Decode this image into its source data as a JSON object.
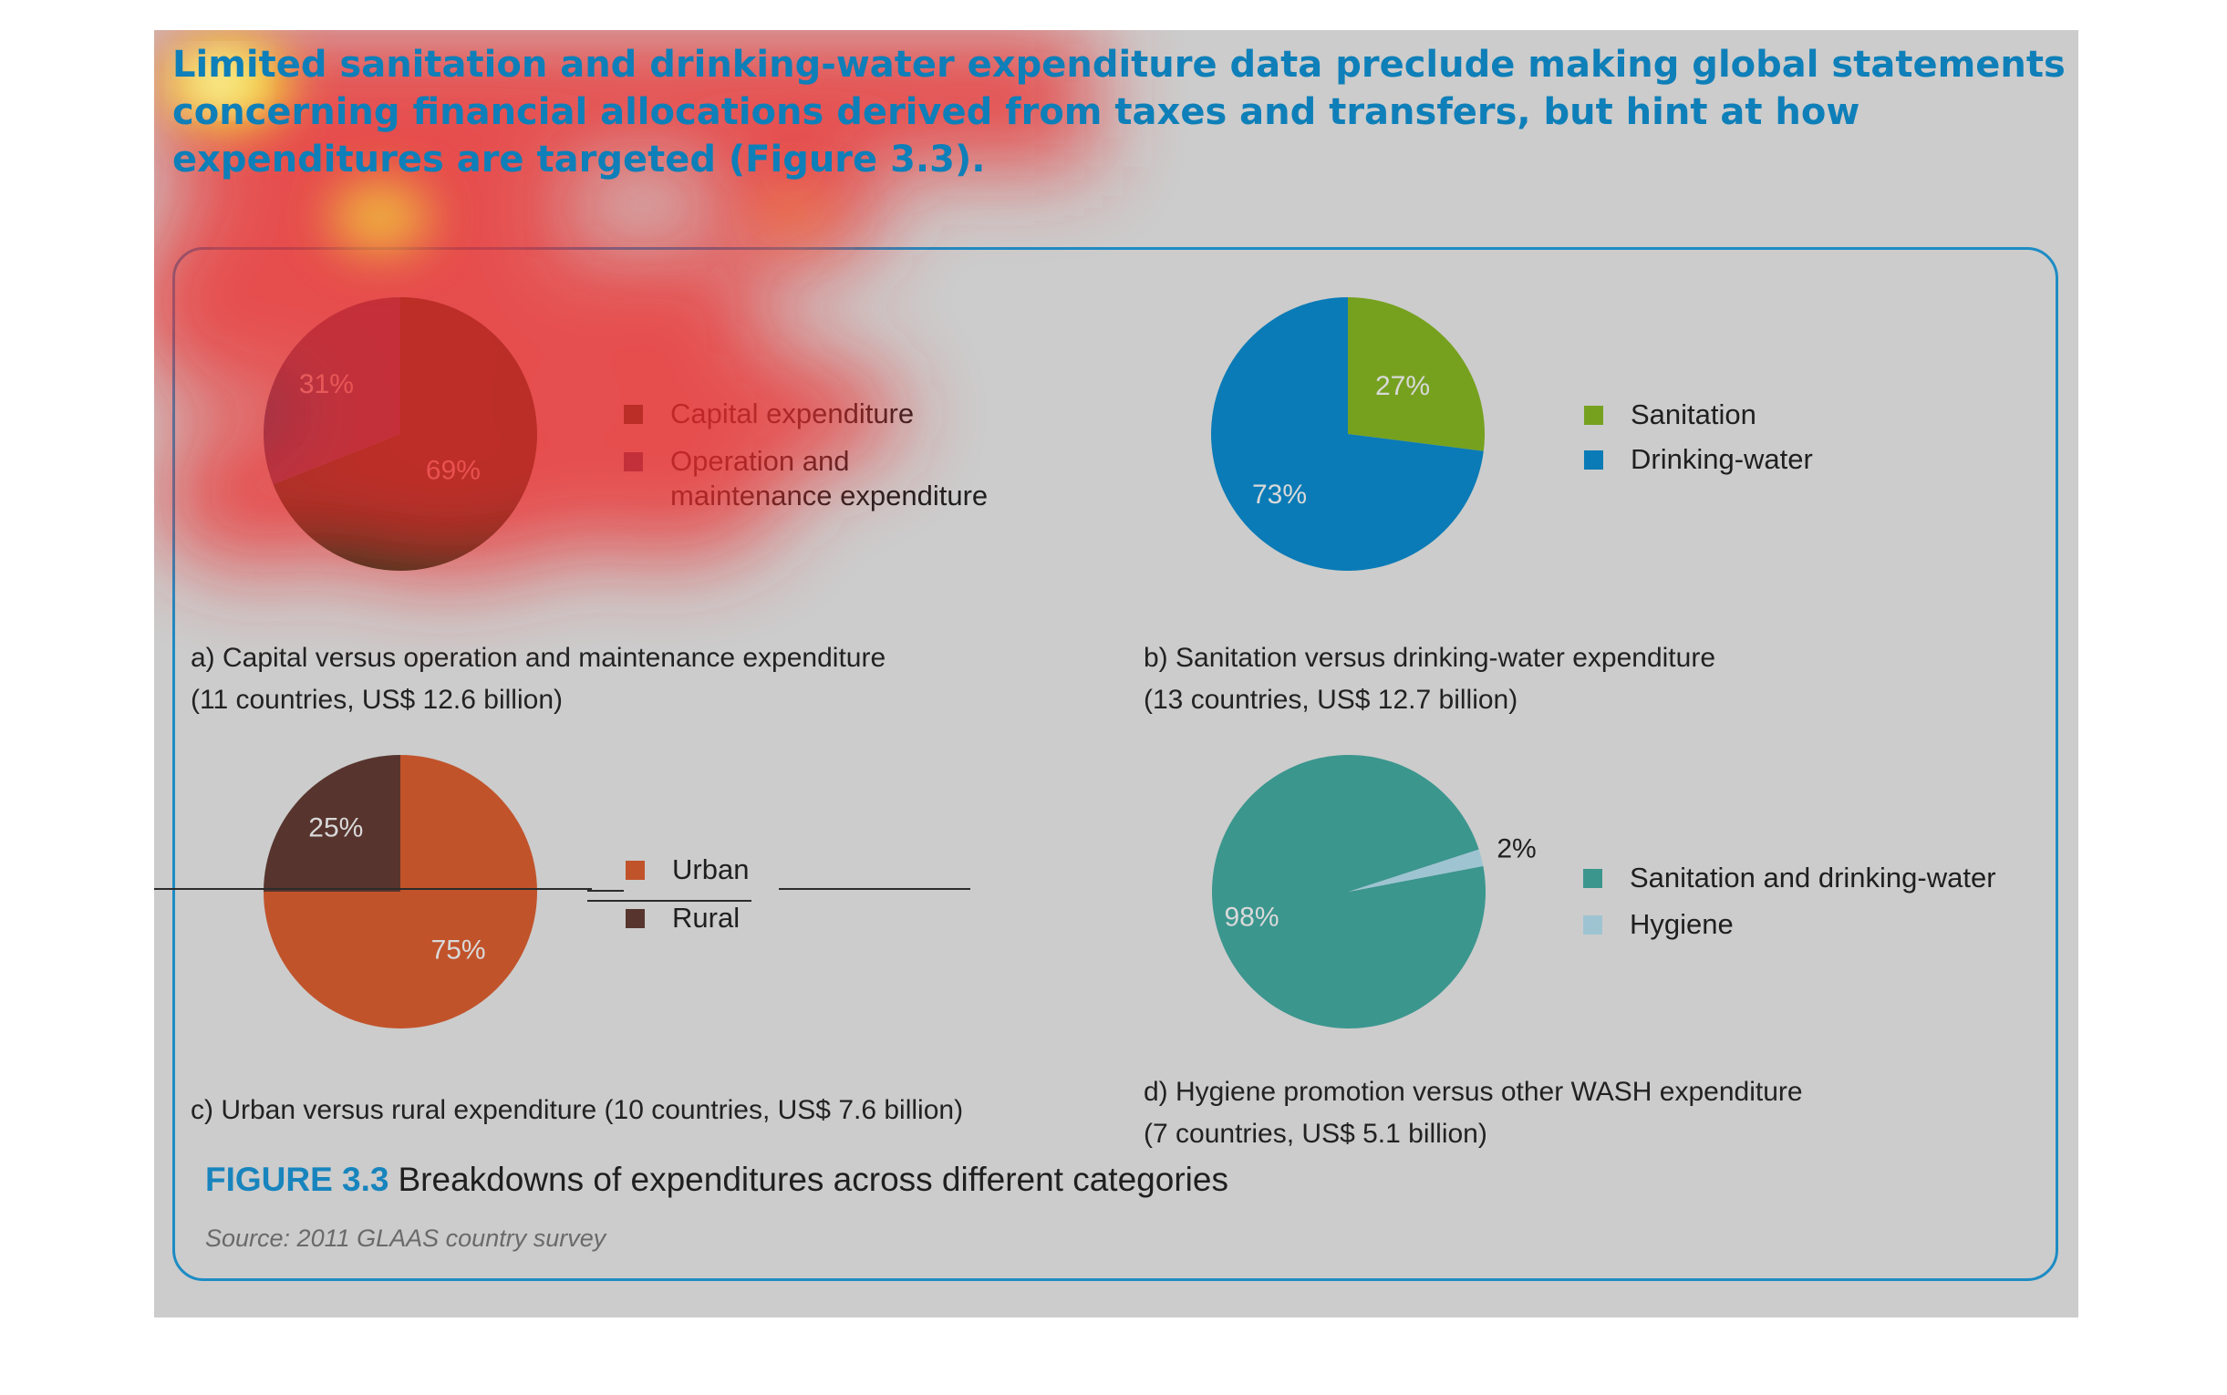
{
  "headline": "Limited sanitation and drinking-water expenditure data preclude making global statements concerning financial allocations derived from taxes and transfers, but hint at how expenditures are targeted (Figure 3.3).",
  "figure": {
    "label": "FIGURE 3.3",
    "title": "Breakdowns of expenditures across different categories",
    "source": "Source: 2011 GLAAS country survey"
  },
  "chart_data": [
    {
      "type": "pie",
      "caption": "a) Capital versus operation and maintenance expenditure\n(11 countries, US$ 12.6 billion)",
      "slices": [
        {
          "label": "Capital expenditure",
          "value": 69,
          "display": "69%",
          "color": "#0b3d1e"
        },
        {
          "label": "Operation and maintenance expenditure",
          "value": 31,
          "display": "31%",
          "color": "#35456f"
        }
      ]
    },
    {
      "type": "pie",
      "caption": "b) Sanitation versus drinking-water expenditure\n(13 countries, US$ 12.7 billion)",
      "slices": [
        {
          "label": "Sanitation",
          "value": 27,
          "display": "27%",
          "color": "#76a11f"
        },
        {
          "label": "Drinking-water",
          "value": 73,
          "display": "73%",
          "color": "#0a7bb6"
        }
      ]
    },
    {
      "type": "pie",
      "caption": "c) Urban versus rural expenditure (10 countries, US$ 7.6 billion)",
      "slices": [
        {
          "label": "Urban",
          "value": 75,
          "display": "75%",
          "color": "#c1532b"
        },
        {
          "label": "Rural",
          "value": 25,
          "display": "25%",
          "color": "#57352e"
        }
      ]
    },
    {
      "type": "pie",
      "caption": "d) Hygiene promotion versus other WASH expenditure\n(7 countries, US$ 5.1 billion)",
      "slices": [
        {
          "label": "Sanitation and drinking-water",
          "value": 98,
          "display": "98%",
          "color": "#3b968e"
        },
        {
          "label": "Hygiene",
          "value": 2,
          "display": "2%",
          "color": "#9ec4d2"
        }
      ]
    }
  ]
}
